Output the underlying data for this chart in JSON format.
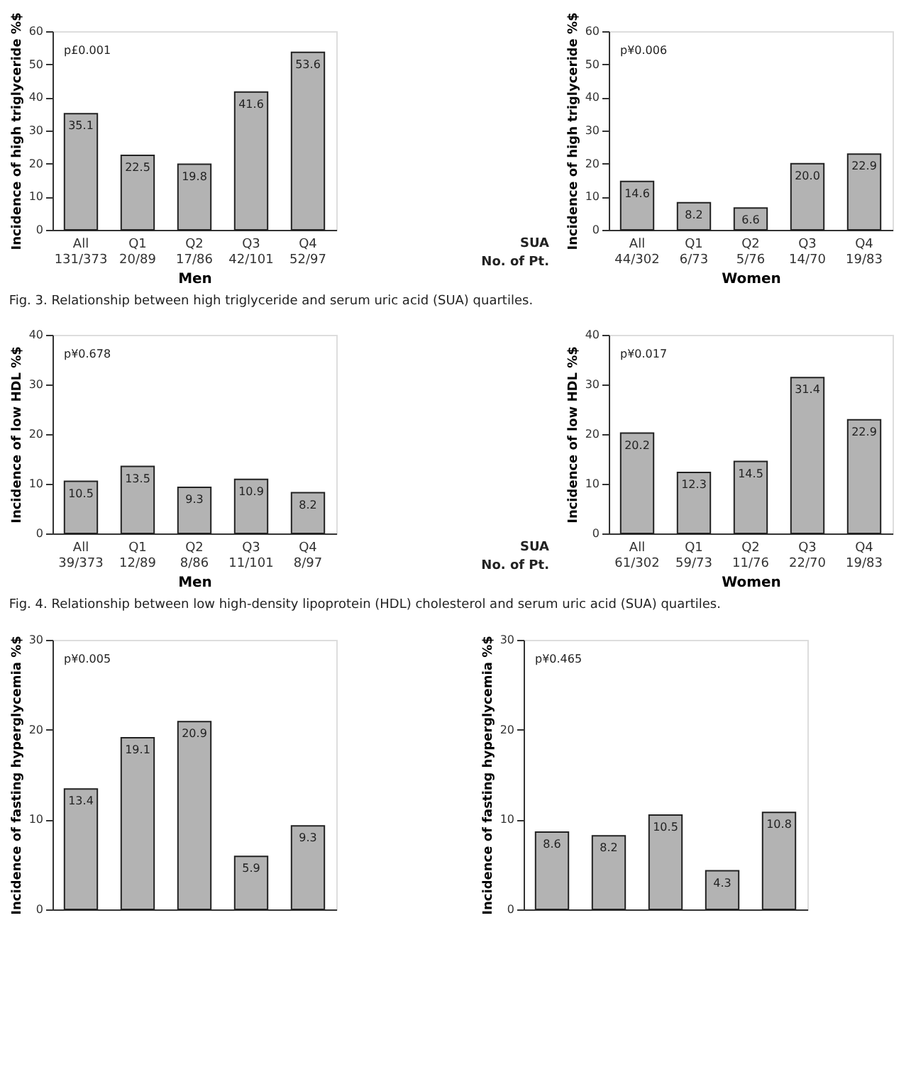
{
  "chart_data": [
    {
      "type": "bar",
      "categories": [
        "All\n131/373",
        "Q1\n20/89",
        "Q2\n17/86",
        "Q3\n42/101",
        "Q4\n52/97"
      ],
      "values": [
        35.1,
        22.5,
        19.8,
        41.6,
        53.6
      ],
      "value_labels": [
        "35.1",
        "22.5",
        "19.8",
        "41.6",
        "53.6"
      ],
      "color": "#b3b3b3",
      "ylim": [
        0,
        60
      ],
      "yticks": [
        0,
        10,
        20,
        30,
        40,
        50,
        60
      ],
      "ylabel": "Incidence of high triglyceride  %$",
      "xlabel": "Men",
      "annotations": [
        "p£0.001",
        "Fig. 3. Relationship between high triglyceride and serum uric acid (SUA) quartiles."
      ]
    },
    {
      "type": "bar",
      "categories": [
        "All\n44/302",
        "Q1\n6/73",
        "Q2\n5/76",
        "Q3\n14/70",
        "Q4\n19/83"
      ],
      "values": [
        14.6,
        8.2,
        6.6,
        20.0,
        22.9
      ],
      "value_labels": [
        "14.6",
        "8.2",
        "6.6",
        "20.0",
        "22.9"
      ],
      "color": "#b3b3b3",
      "ylim": [
        0,
        60
      ],
      "yticks": [
        0,
        10,
        20,
        30,
        40,
        50,
        60
      ],
      "ylabel": "Incidence of high triglyceride  %$",
      "xlabel": "Women",
      "annotations": [
        "p¥0.006",
        "SUA\nNo. of Pt."
      ]
    },
    {
      "type": "bar",
      "categories": [
        "All\n39/373",
        "Q1\n12/89",
        "Q2\n8/86",
        "Q3\n11/101",
        "Q4\n8/97"
      ],
      "values": [
        10.5,
        13.5,
        9.3,
        10.9,
        8.2
      ],
      "value_labels": [
        "10.5",
        "13.5",
        "9.3",
        "10.9",
        "8.2"
      ],
      "color": "#b3b3b3",
      "ylim": [
        0,
        40
      ],
      "yticks": [
        0,
        10,
        20,
        30,
        40
      ],
      "ylabel": "Incidence of low HDL  %$",
      "xlabel": "Men",
      "annotations": [
        "p¥0.678",
        "Fig. 4. Relationship between low high-density lipoprotein (HDL) cholesterol and serum uric acid (SUA) quartiles."
      ]
    },
    {
      "type": "bar",
      "categories": [
        "All\n61/302",
        "Q1\n59/73",
        "Q2\n11/76",
        "Q3\n22/70",
        "Q4\n19/83"
      ],
      "values": [
        20.2,
        12.3,
        14.5,
        31.4,
        22.9
      ],
      "value_labels": [
        "20.2",
        "12.3",
        "14.5",
        "31.4",
        "22.9"
      ],
      "color": "#b3b3b3",
      "ylim": [
        0,
        40
      ],
      "yticks": [
        0,
        10,
        20,
        30,
        40
      ],
      "ylabel": "Incidence of low HDL  %$",
      "xlabel": "Women",
      "annotations": [
        "p¥0.017",
        "SUA\nNo. of Pt."
      ]
    },
    {
      "type": "bar",
      "categories": [
        null,
        null,
        null,
        null,
        null
      ],
      "values": [
        13.4,
        19.1,
        20.9,
        5.9,
        9.3
      ],
      "value_labels": [
        "13.4",
        "19.1",
        "20.9",
        "5.9",
        "9.3"
      ],
      "color": "#b3b3b3",
      "ylim": [
        0,
        30
      ],
      "yticks": [
        0,
        10,
        20,
        30
      ],
      "ylabel": "Incidence of fasting hyperglycemia  %$",
      "tick_labels": "y",
      "annotations": [
        "p¥0.005"
      ]
    },
    {
      "type": "bar",
      "categories": [
        null,
        null,
        null,
        null,
        null
      ],
      "values": [
        8.6,
        8.2,
        10.5,
        4.3,
        10.8
      ],
      "value_labels": [
        "8.6",
        "8.2",
        "10.5",
        "4.3",
        "10.8"
      ],
      "color": "#b3b3b3",
      "ylim": [
        0,
        30
      ],
      "yticks": [
        0,
        10,
        20,
        30
      ],
      "ylabel": "Incidence of fasting hyperglycemia  %$",
      "tick_labels": "y",
      "annotations": [
        "p¥0.465"
      ]
    }
  ]
}
